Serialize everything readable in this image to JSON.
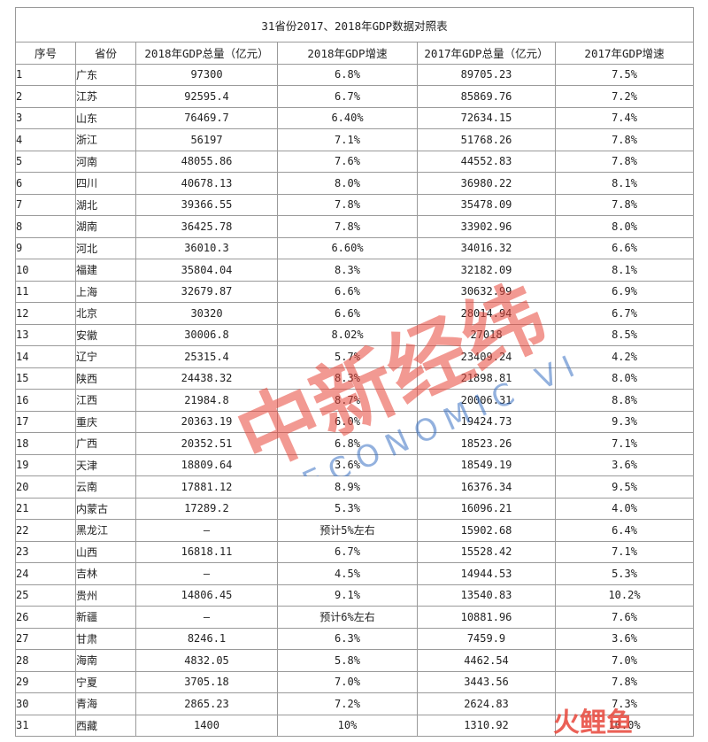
{
  "title": "31省份2017、2018年GDP数据对照表",
  "headers": [
    "序号",
    "省份",
    "2018年GDP总量（亿元）",
    "2018年GDP增速",
    "2017年GDP总量（亿元）",
    "2017年GDP增速"
  ],
  "rows": [
    [
      "1",
      "广东",
      "97300",
      "6.8%",
      "89705.23",
      "7.5%"
    ],
    [
      "2",
      "江苏",
      "92595.4",
      "6.7%",
      "85869.76",
      "7.2%"
    ],
    [
      "3",
      "山东",
      "76469.7",
      "6.40%",
      "72634.15",
      "7.4%"
    ],
    [
      "4",
      "浙江",
      "56197",
      "7.1%",
      "51768.26",
      "7.8%"
    ],
    [
      "5",
      "河南",
      "48055.86",
      "7.6%",
      "44552.83",
      "7.8%"
    ],
    [
      "6",
      "四川",
      "40678.13",
      "8.0%",
      "36980.22",
      "8.1%"
    ],
    [
      "7",
      "湖北",
      "39366.55",
      "7.8%",
      "35478.09",
      "7.8%"
    ],
    [
      "8",
      "湖南",
      "36425.78",
      "7.8%",
      "33902.96",
      "8.0%"
    ],
    [
      "9",
      "河北",
      "36010.3",
      "6.60%",
      "34016.32",
      "6.6%"
    ],
    [
      "10",
      "福建",
      "35804.04",
      "8.3%",
      "32182.09",
      "8.1%"
    ],
    [
      "11",
      "上海",
      "32679.87",
      "6.6%",
      "30632.99",
      "6.9%"
    ],
    [
      "12",
      "北京",
      "30320",
      "6.6%",
      "28014.94",
      "6.7%"
    ],
    [
      "13",
      "安徽",
      "30006.8",
      "8.02%",
      "27018",
      "8.5%"
    ],
    [
      "14",
      "辽宁",
      "25315.4",
      "5.7%",
      "23409.24",
      "4.2%"
    ],
    [
      "15",
      "陕西",
      "24438.32",
      "8.3%",
      "21898.81",
      "8.0%"
    ],
    [
      "16",
      "江西",
      "21984.8",
      "8.7%",
      "20006.31",
      "8.8%"
    ],
    [
      "17",
      "重庆",
      "20363.19",
      "6.0%",
      "19424.73",
      "9.3%"
    ],
    [
      "18",
      "广西",
      "20352.51",
      "6.8%",
      "18523.26",
      "7.1%"
    ],
    [
      "19",
      "天津",
      "18809.64",
      "3.6%",
      "18549.19",
      "3.6%"
    ],
    [
      "20",
      "云南",
      "17881.12",
      "8.9%",
      "16376.34",
      "9.5%"
    ],
    [
      "21",
      "内蒙古",
      "17289.2",
      "5.3%",
      "16096.21",
      "4.0%"
    ],
    [
      "22",
      "黑龙江",
      "—",
      "预计5%左右",
      "15902.68",
      "6.4%"
    ],
    [
      "23",
      "山西",
      "16818.11",
      "6.7%",
      "15528.42",
      "7.1%"
    ],
    [
      "24",
      "吉林",
      "—",
      "4.5%",
      "14944.53",
      "5.3%"
    ],
    [
      "25",
      "贵州",
      "14806.45",
      "9.1%",
      "13540.83",
      "10.2%"
    ],
    [
      "26",
      "新疆",
      "—",
      "预计6%左右",
      "10881.96",
      "7.6%"
    ],
    [
      "27",
      "甘肃",
      "8246.1",
      "6.3%",
      "7459.9",
      "3.6%"
    ],
    [
      "28",
      "海南",
      "4832.05",
      "5.8%",
      "4462.54",
      "7.0%"
    ],
    [
      "29",
      "宁夏",
      "3705.18",
      "7.0%",
      "3443.56",
      "7.8%"
    ],
    [
      "30",
      "青海",
      "2865.23",
      "7.2%",
      "2624.83",
      "7.3%"
    ],
    [
      "31",
      "西藏",
      "1400",
      "10%",
      "1310.92",
      "10.0%"
    ]
  ],
  "watermark": {
    "main": "中新经纬",
    "sub": "ECONOMIC VIEW",
    "color": "#e8463a",
    "sub_color": "#3b73c4"
  },
  "corner_logo": {
    "text": "火鲤鱼",
    "color": "#e8463a"
  }
}
